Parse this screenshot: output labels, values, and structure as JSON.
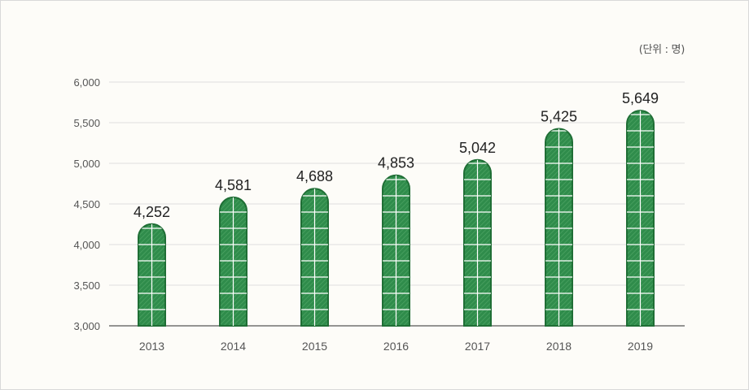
{
  "unit_label": "(단위 : 명)",
  "colors": {
    "bar_fill": "#2e8b4a",
    "bar_stroke": "#1f6e35",
    "grid": "#dedede",
    "axis": "#555555"
  },
  "chart_data": {
    "type": "bar",
    "categories": [
      "2013",
      "2014",
      "2015",
      "2016",
      "2017",
      "2018",
      "2019"
    ],
    "values": [
      4252,
      4581,
      4688,
      4853,
      5042,
      5425,
      5649
    ],
    "data_labels": [
      "4,252",
      "4,581",
      "4,688",
      "4,853",
      "5,042",
      "5,425",
      "5,649"
    ],
    "yticks": [
      3000,
      3500,
      4000,
      4500,
      5000,
      5500,
      6000
    ],
    "ytick_labels": [
      "3,000",
      "3,500",
      "4,000",
      "4,500",
      "5,000",
      "5,500",
      "6,000"
    ],
    "ylim": [
      3000,
      6000
    ],
    "grid": true,
    "title": "",
    "xlabel": "",
    "ylabel": ""
  }
}
